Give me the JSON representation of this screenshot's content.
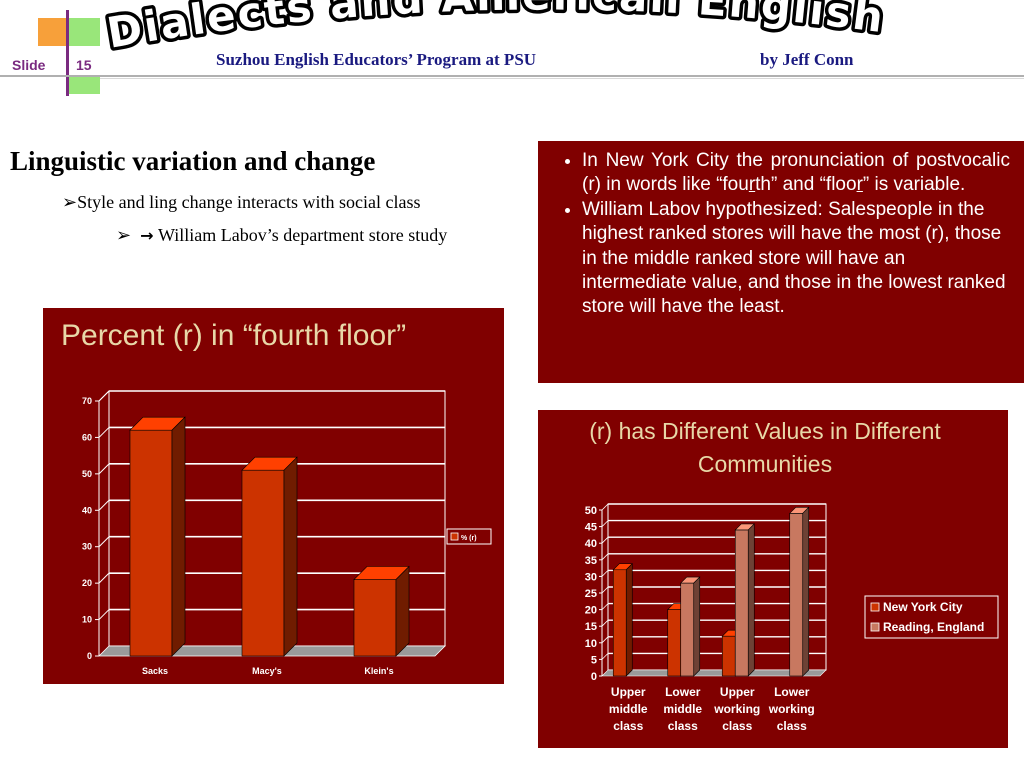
{
  "header": {
    "title": "Dialects and American English",
    "subtitle": "Suzhou English Educators’ Program at PSU",
    "author": "by Jeff Conn",
    "slide_label": "Slide",
    "slide_number": "15"
  },
  "content": {
    "heading": "Linguistic variation and change",
    "bullet1": "Style and ling change interacts with social class",
    "bullet2": "William Labov’s department store study"
  },
  "textbox": {
    "item1_part1": "In New York City the pronunciation of postvocalic (r) in words like “fou",
    "item1_r1": "r",
    "item1_part2": "th” and “floo",
    "item1_r2": "r",
    "item1_part3": "” is variable.",
    "item2": "William Labov hypothesized: Salespeople in the highest ranked stores will have the most (r), those in the middle ranked store will have an intermediate value, and those in the lowest ranked store will have the least."
  },
  "colors": {
    "panel_bg": "#800000",
    "bar_red": "#cc3300",
    "bar_pink": "#c87860",
    "header_text": "#1a1a80",
    "slide_label": "#7a2a80"
  },
  "chart_data": [
    {
      "type": "bar",
      "title": "Percent (r) in “fourth floor”",
      "categories": [
        "Sacks",
        "Macy's",
        "Klein's"
      ],
      "series": [
        {
          "name": "% (r)",
          "values": [
            62,
            51,
            21
          ]
        }
      ],
      "ylim": [
        0,
        70
      ],
      "yticks": [
        0,
        10,
        20,
        30,
        40,
        50,
        60,
        70
      ],
      "grid": true,
      "legend": "right"
    },
    {
      "type": "bar",
      "title": "(r) has Different Values in Different Communities",
      "categories": [
        "Upper middle class",
        "Lower middle class",
        "Upper working class",
        "Lower working class"
      ],
      "series": [
        {
          "name": "New York City",
          "values": [
            32,
            20,
            12,
            0
          ]
        },
        {
          "name": "Reading, England",
          "values": [
            0,
            28,
            44,
            49
          ]
        }
      ],
      "ylim": [
        0,
        50
      ],
      "yticks": [
        0,
        5,
        10,
        15,
        20,
        25,
        30,
        35,
        40,
        45,
        50
      ],
      "grid": true,
      "legend": "right"
    }
  ]
}
